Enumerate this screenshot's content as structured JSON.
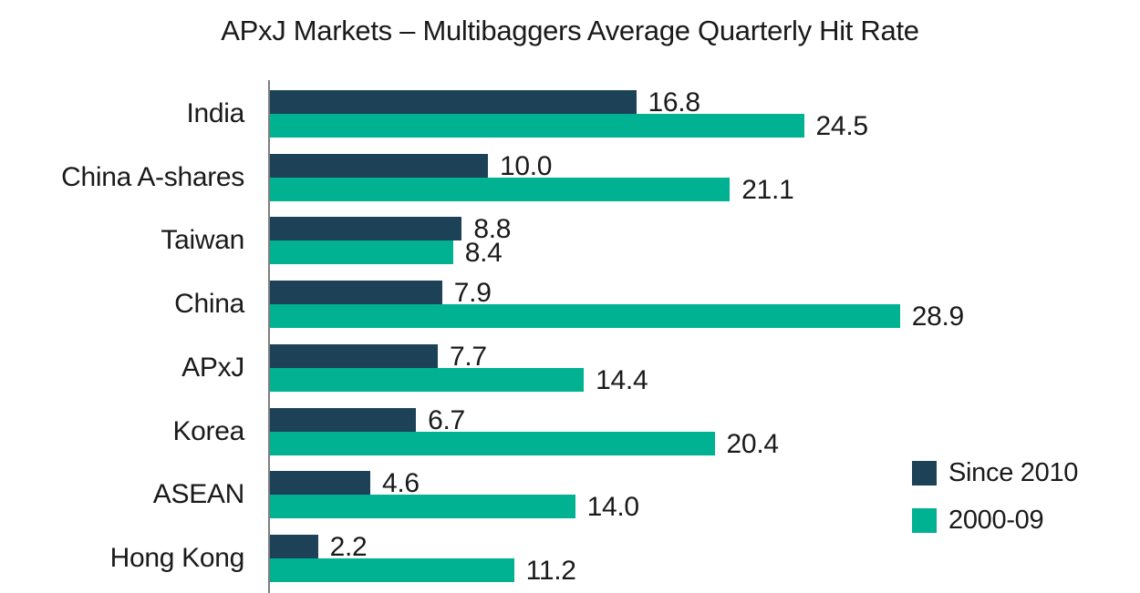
{
  "chart_data": {
    "type": "bar",
    "orientation": "horizontal",
    "title": "APxJ Markets – Multibaggers Average Quarterly Hit Rate",
    "categories": [
      "India",
      "China A-shares",
      "Taiwan",
      "China",
      "APxJ",
      "Korea",
      "ASEAN",
      "Hong Kong"
    ],
    "series": [
      {
        "name": "Since 2010",
        "color": "#1d4157",
        "values": [
          16.8,
          10.0,
          8.8,
          7.9,
          7.7,
          6.7,
          4.6,
          2.2
        ]
      },
      {
        "name": "2000-09",
        "color": "#00b192",
        "values": [
          24.5,
          21.1,
          8.4,
          28.9,
          14.4,
          20.4,
          14.0,
          11.2
        ]
      }
    ],
    "xlim": [
      0,
      30
    ],
    "value_labels": "one-decimal-at-bar-end",
    "legend_position": "lower-right",
    "grid": "off",
    "axis_color": "#7f7f7f",
    "text_color": "#1a1a1a",
    "background_color": "#ffffff"
  }
}
